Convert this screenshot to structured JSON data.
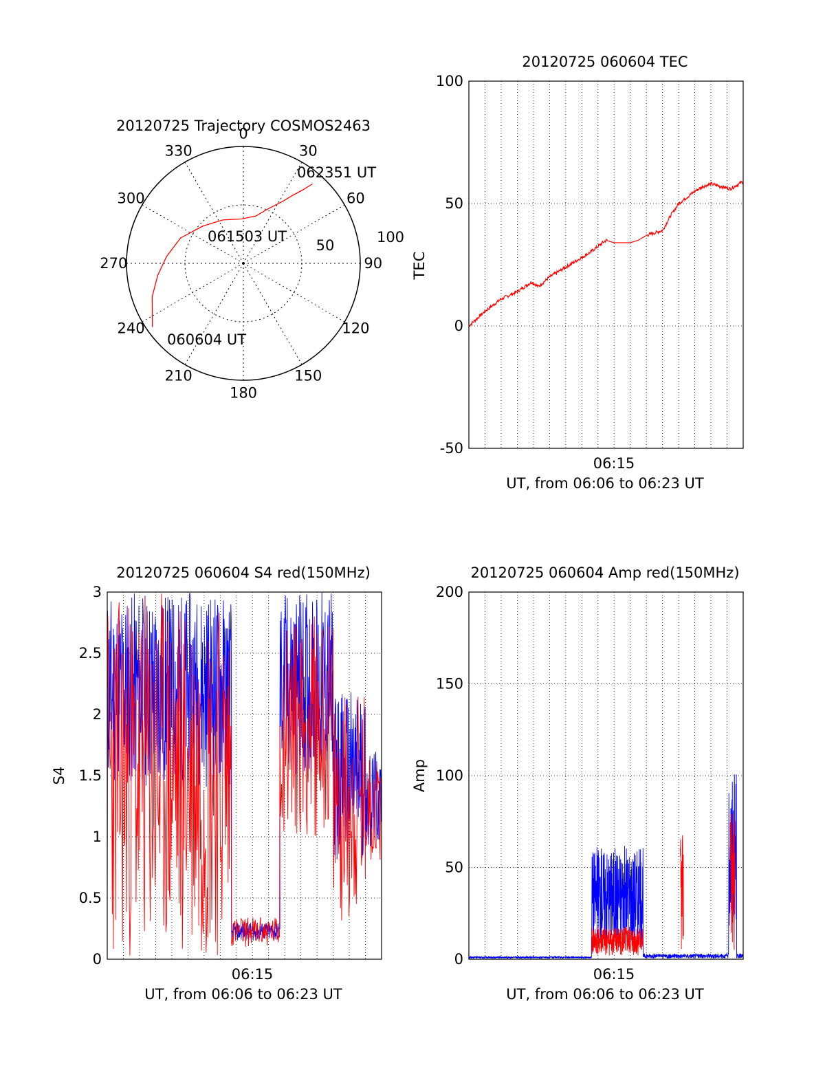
{
  "colors": {
    "red": "#ff0000",
    "blue": "#0000ff",
    "axis": "#000000",
    "grid": "#000000"
  },
  "chart_data": [
    {
      "id": "trajectory",
      "type": "polar",
      "title": "20120725 Trajectory COSMOS2463",
      "azimuth_labels": [
        "0",
        "30",
        "60",
        "90",
        "120",
        "150",
        "180",
        "210",
        "240",
        "270",
        "300",
        "330"
      ],
      "elevation_ring_labels": [
        "50",
        "100"
      ],
      "rlim": [
        0,
        100
      ],
      "grid": true,
      "series": [
        {
          "color": "red",
          "points_az_r": [
            [
              235,
              95
            ],
            [
              250,
              83
            ],
            [
              262,
              74
            ],
            [
              275,
              66
            ],
            [
              292,
              58
            ],
            [
              313,
              47
            ],
            [
              335,
              41
            ],
            [
              358,
              38
            ],
            [
              15,
              42
            ],
            [
              25,
              52
            ],
            [
              32,
              62
            ],
            [
              36,
              72
            ],
            [
              39,
              81
            ],
            [
              41,
              90
            ]
          ]
        }
      ],
      "annotations": [
        {
          "text": "062351 UT",
          "az": 42,
          "r": 91
        },
        {
          "text": "061503 UT",
          "az": 0,
          "r": 0
        },
        {
          "text": "060604 UT",
          "az": 236,
          "r": 96
        }
      ]
    },
    {
      "id": "tec",
      "type": "line",
      "title": "20120725 060604 TEC",
      "ylabel": "TEC",
      "xlabel": "UT, from 06:06 to 06:23 UT",
      "x_tick_label": "06:15",
      "ylim": [
        -50,
        100
      ],
      "y_ticks": [
        -50,
        0,
        50,
        100
      ],
      "grid": true,
      "series": [
        {
          "color": "red",
          "x_min": [
            0,
            1,
            2,
            3,
            3.9,
            4.3,
            5,
            6,
            7.5,
            8.5,
            9,
            10,
            10.5,
            11,
            12,
            12.5,
            13,
            14,
            14.5,
            15,
            16.2,
            17
          ],
          "y": [
            0,
            6,
            11,
            14,
            18,
            16,
            20,
            24,
            30,
            35,
            34,
            34,
            35,
            37,
            39,
            45,
            50,
            55,
            57,
            58,
            56,
            59
          ]
        }
      ]
    },
    {
      "id": "s4",
      "type": "line",
      "title": "20120725 060604 S4 red(150MHz)",
      "ylabel": "S4",
      "xlabel": "UT, from 06:06 to 06:23 UT",
      "x_tick_label": "06:15",
      "ylim": [
        0,
        3
      ],
      "y_ticks": [
        0,
        0.5,
        1,
        1.5,
        2,
        2.5,
        3
      ],
      "grid": true,
      "series": [
        {
          "color": "blue",
          "segments": [
            {
              "x_range": [
                0,
                7.7
              ],
              "low": 1.4,
              "high": 3.0
            },
            {
              "x_range": [
                7.7,
                10.7
              ],
              "low": 0.15,
              "high": 0.3
            },
            {
              "x_range": [
                10.7,
                14
              ],
              "low": 1.5,
              "high": 3.0
            },
            {
              "x_range": [
                14,
                16
              ],
              "low": 0.8,
              "high": 2.2
            },
            {
              "x_range": [
                16,
                17
              ],
              "low": 0.9,
              "high": 1.7
            }
          ]
        },
        {
          "color": "red",
          "segments": [
            {
              "x_range": [
                0,
                7.7
              ],
              "low": 0.0,
              "high": 3.0
            },
            {
              "x_range": [
                7.7,
                10.7
              ],
              "low": 0.1,
              "high": 0.35
            },
            {
              "x_range": [
                10.7,
                14
              ],
              "low": 1.0,
              "high": 2.8
            },
            {
              "x_range": [
                14,
                16
              ],
              "low": 0.3,
              "high": 2.2
            },
            {
              "x_range": [
                16,
                17
              ],
              "low": 0.8,
              "high": 1.7
            }
          ]
        }
      ]
    },
    {
      "id": "amp",
      "type": "line",
      "title": "20120725 060604 Amp red(150MHz)",
      "ylabel": "Amp",
      "xlabel": "UT, from 06:06 to 06:23 UT",
      "x_tick_label": "06:15",
      "ylim": [
        0,
        200
      ],
      "y_ticks": [
        0,
        50,
        100,
        150,
        200
      ],
      "grid": true,
      "series": [
        {
          "color": "blue",
          "segments": [
            {
              "x_range": [
                0,
                7.6
              ],
              "low": 0.5,
              "high": 1.5
            },
            {
              "x_range": [
                7.6,
                10.8
              ],
              "low": 8,
              "high": 62
            },
            {
              "x_range": [
                10.8,
                16.1
              ],
              "low": 0.5,
              "high": 3
            },
            {
              "x_range": [
                16.1,
                16.6
              ],
              "low": 15,
              "high": 103
            },
            {
              "x_range": [
                16.6,
                17
              ],
              "low": 0.5,
              "high": 3
            }
          ]
        },
        {
          "color": "red",
          "segments": [
            {
              "x_range": [
                7.6,
                10.8
              ],
              "low": 2,
              "high": 18
            },
            {
              "x_range": [
                13.1,
                13.3
              ],
              "low": 2,
              "high": 68
            },
            {
              "x_range": [
                16.2,
                16.5
              ],
              "low": 5,
              "high": 80
            }
          ]
        }
      ]
    }
  ]
}
